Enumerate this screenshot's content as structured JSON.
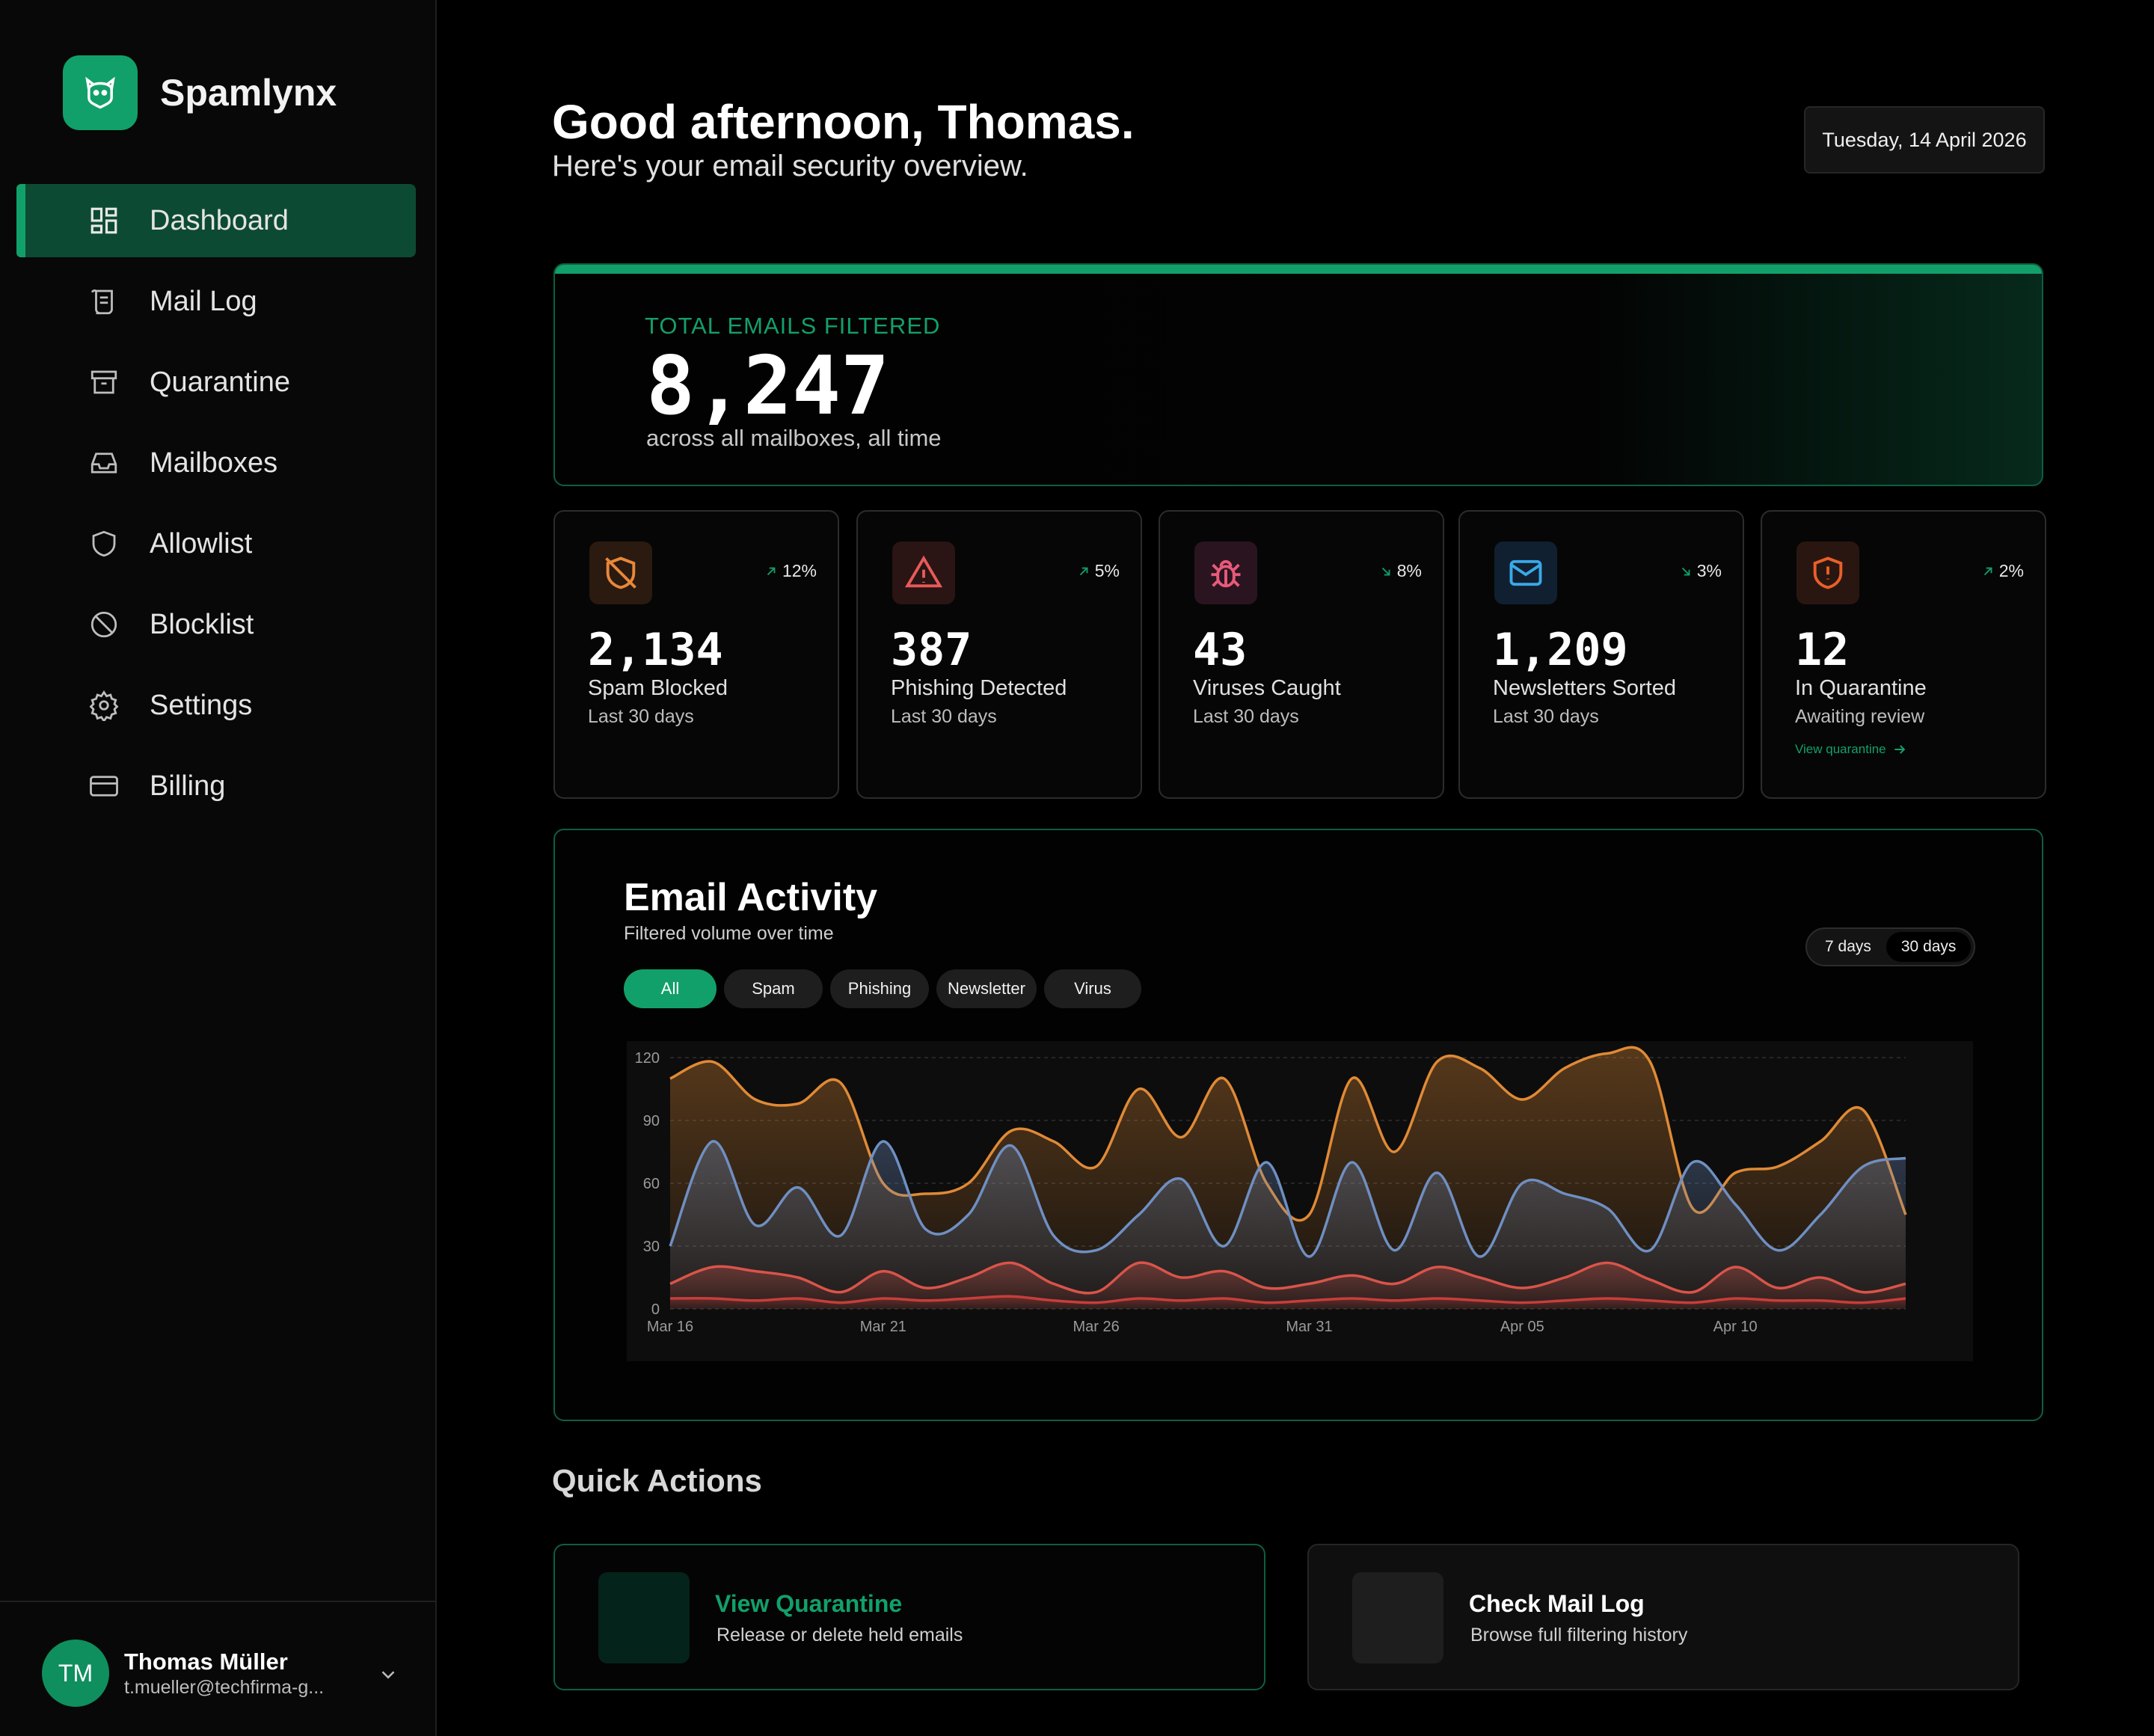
{
  "app": {
    "name": "Spamlynx",
    "accent": "#12a06a"
  },
  "nav": [
    {
      "label": "Dashboard",
      "icon": "dashboard-icon",
      "active": true
    },
    {
      "label": "Mail Log",
      "icon": "scroll-icon"
    },
    {
      "label": "Quarantine",
      "icon": "archive-icon"
    },
    {
      "label": "Mailboxes",
      "icon": "inbox-icon"
    },
    {
      "label": "Allowlist",
      "icon": "shield-icon"
    },
    {
      "label": "Blocklist",
      "icon": "ban-icon"
    },
    {
      "label": "Settings",
      "icon": "gear-icon"
    },
    {
      "label": "Billing",
      "icon": "credit-card-icon"
    }
  ],
  "user": {
    "initials": "TM",
    "name": "Thomas Müller",
    "email": "t.mueller@techfirma-g..."
  },
  "header": {
    "greeting": "Good afternoon, Thomas.",
    "subtitle": "Here's your email security overview.",
    "date": "Tuesday, 14 April 2026"
  },
  "hero": {
    "label": "TOTAL EMAILS FILTERED",
    "value": "8,247",
    "sub": "across all mailboxes, all time"
  },
  "stats": [
    {
      "icon": "shield-off-icon",
      "color": "#e8883a",
      "bg": "#2a1a10",
      "change": "12%",
      "dir": "up",
      "value": "2,134",
      "label": "Spam Blocked",
      "period": "Last 30 days"
    },
    {
      "icon": "alert-triangle-icon",
      "color": "#e85a5a",
      "bg": "#2a1414",
      "change": "5%",
      "dir": "up",
      "value": "387",
      "label": "Phishing Detected",
      "period": "Last 30 days"
    },
    {
      "icon": "bug-icon",
      "color": "#e85a7a",
      "bg": "#2a1420",
      "change": "8%",
      "dir": "down",
      "value": "43",
      "label": "Viruses Caught",
      "period": "Last 30 days"
    },
    {
      "icon": "mail-icon",
      "color": "#3aa8e8",
      "bg": "#102030",
      "change": "3%",
      "dir": "down",
      "value": "1,209",
      "label": "Newsletters Sorted",
      "period": "Last 30 days"
    },
    {
      "icon": "shield-alert-icon",
      "color": "#e8602a",
      "bg": "#2a1610",
      "change": "2%",
      "dir": "up",
      "value": "12",
      "label": "In Quarantine",
      "period": "Awaiting review",
      "link": "View quarantine"
    }
  ],
  "activity": {
    "title": "Email Activity",
    "subtitle": "Filtered volume over time",
    "ranges": [
      "7 days",
      "30 days"
    ],
    "active_range": "30 days",
    "filters": [
      "All",
      "Spam",
      "Phishing",
      "Newsletter",
      "Virus"
    ],
    "active_filter": "All"
  },
  "chart_data": {
    "type": "area",
    "x": [
      "Mar 16",
      "Mar 17",
      "Mar 18",
      "Mar 19",
      "Mar 20",
      "Mar 21",
      "Mar 22",
      "Mar 23",
      "Mar 24",
      "Mar 25",
      "Mar 26",
      "Mar 27",
      "Mar 28",
      "Mar 29",
      "Mar 30",
      "Mar 31",
      "Apr 01",
      "Apr 02",
      "Apr 03",
      "Apr 04",
      "Apr 05",
      "Apr 06",
      "Apr 07",
      "Apr 08",
      "Apr 09",
      "Apr 10",
      "Apr 11",
      "Apr 12",
      "Apr 13",
      "Apr 14"
    ],
    "xticks": [
      "Mar 16",
      "Mar 21",
      "Mar 26",
      "Mar 31",
      "Apr 05",
      "Apr 10"
    ],
    "yticks": [
      0,
      30,
      60,
      90,
      120
    ],
    "ylim": [
      0,
      120
    ],
    "grid": true,
    "series": [
      {
        "color": "#e08a35",
        "values": [
          110,
          118,
          100,
          98,
          108,
          60,
          55,
          60,
          85,
          80,
          68,
          105,
          82,
          110,
          60,
          45,
          110,
          75,
          118,
          115,
          100,
          115,
          122,
          118,
          48,
          65,
          68,
          80,
          95,
          45
        ]
      },
      {
        "color": "#6f8fc2",
        "values": [
          30,
          80,
          40,
          58,
          35,
          80,
          38,
          45,
          78,
          35,
          28,
          45,
          62,
          30,
          70,
          25,
          70,
          28,
          65,
          25,
          60,
          55,
          48,
          28,
          70,
          50,
          28,
          45,
          68,
          72
        ]
      },
      {
        "color": "#d9544a",
        "values": [
          12,
          20,
          18,
          15,
          8,
          18,
          10,
          15,
          22,
          12,
          8,
          22,
          15,
          18,
          10,
          12,
          16,
          12,
          20,
          15,
          10,
          15,
          22,
          14,
          8,
          20,
          10,
          15,
          8,
          12
        ]
      },
      {
        "color": "#c73e3a",
        "values": [
          5,
          5,
          4,
          5,
          3,
          5,
          4,
          5,
          6,
          4,
          3,
          5,
          4,
          5,
          3,
          4,
          5,
          4,
          5,
          4,
          3,
          4,
          5,
          4,
          3,
          5,
          4,
          4,
          3,
          5
        ]
      }
    ]
  },
  "quick_actions": {
    "title": "Quick Actions",
    "items": [
      {
        "name": "View Quarantine",
        "desc": "Release or delete held emails"
      },
      {
        "name": "Check Mail Log",
        "desc": "Browse full filtering history"
      }
    ]
  }
}
